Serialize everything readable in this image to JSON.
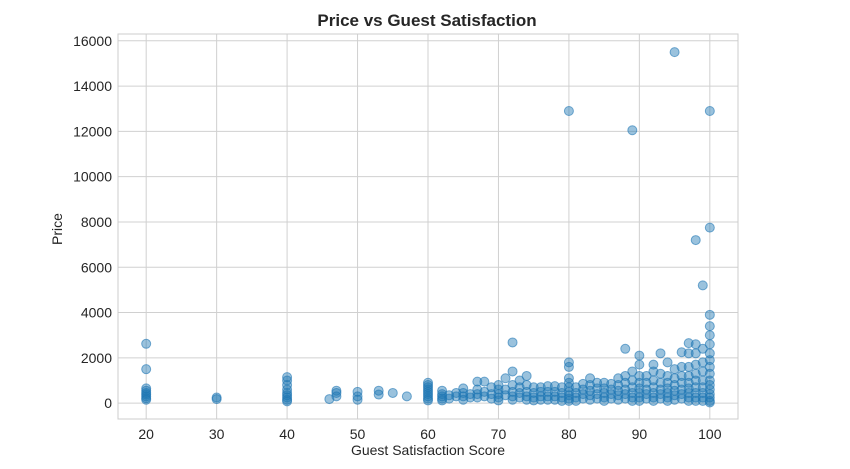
{
  "chart_data": {
    "type": "scatter",
    "title": "Price vs Guest Satisfaction",
    "xlabel": "Guest Satisfaction Score",
    "ylabel": "Price",
    "xlim": [
      16,
      104
    ],
    "ylim": [
      -700,
      16300
    ],
    "xticks": [
      20,
      30,
      40,
      50,
      60,
      70,
      80,
      90,
      100
    ],
    "yticks": [
      0,
      2000,
      4000,
      6000,
      8000,
      10000,
      12000,
      14000,
      16000
    ],
    "grid": true,
    "color": "#1f77b4",
    "alpha": 0.45,
    "points": [
      [
        20,
        2620
      ],
      [
        20,
        1500
      ],
      [
        20,
        650
      ],
      [
        20,
        550
      ],
      [
        20,
        450
      ],
      [
        20,
        380
      ],
      [
        20,
        300
      ],
      [
        20,
        220
      ],
      [
        20,
        150
      ],
      [
        30,
        250
      ],
      [
        30,
        180
      ],
      [
        40,
        1150
      ],
      [
        40,
        1000
      ],
      [
        40,
        800
      ],
      [
        40,
        600
      ],
      [
        40,
        450
      ],
      [
        40,
        350
      ],
      [
        40,
        250
      ],
      [
        40,
        150
      ],
      [
        40,
        80
      ],
      [
        46,
        180
      ],
      [
        47,
        550
      ],
      [
        47,
        450
      ],
      [
        47,
        300
      ],
      [
        50,
        500
      ],
      [
        50,
        300
      ],
      [
        50,
        150
      ],
      [
        53,
        550
      ],
      [
        53,
        380
      ],
      [
        55,
        450
      ],
      [
        57,
        300
      ],
      [
        60,
        900
      ],
      [
        60,
        800
      ],
      [
        60,
        700
      ],
      [
        60,
        600
      ],
      [
        60,
        500
      ],
      [
        60,
        400
      ],
      [
        60,
        300
      ],
      [
        60,
        200
      ],
      [
        60,
        120
      ],
      [
        62,
        550
      ],
      [
        62,
        400
      ],
      [
        62,
        300
      ],
      [
        62,
        200
      ],
      [
        62,
        120
      ],
      [
        63,
        350
      ],
      [
        63,
        200
      ],
      [
        64,
        450
      ],
      [
        64,
        300
      ],
      [
        65,
        650
      ],
      [
        65,
        450
      ],
      [
        65,
        300
      ],
      [
        65,
        150
      ],
      [
        66,
        400
      ],
      [
        66,
        250
      ],
      [
        67,
        950
      ],
      [
        67,
        600
      ],
      [
        67,
        400
      ],
      [
        67,
        250
      ],
      [
        68,
        950
      ],
      [
        68,
        500
      ],
      [
        68,
        300
      ],
      [
        69,
        700
      ],
      [
        69,
        400
      ],
      [
        69,
        200
      ],
      [
        70,
        800
      ],
      [
        70,
        600
      ],
      [
        70,
        400
      ],
      [
        70,
        250
      ],
      [
        70,
        120
      ],
      [
        71,
        1100
      ],
      [
        71,
        600
      ],
      [
        71,
        350
      ],
      [
        72,
        2680
      ],
      [
        72,
        1400
      ],
      [
        72,
        800
      ],
      [
        72,
        500
      ],
      [
        72,
        300
      ],
      [
        72,
        150
      ],
      [
        73,
        1000
      ],
      [
        73,
        700
      ],
      [
        73,
        450
      ],
      [
        73,
        250
      ],
      [
        74,
        1200
      ],
      [
        74,
        800
      ],
      [
        74,
        500
      ],
      [
        74,
        300
      ],
      [
        74,
        150
      ],
      [
        75,
        700
      ],
      [
        75,
        450
      ],
      [
        75,
        250
      ],
      [
        75,
        120
      ],
      [
        76,
        700
      ],
      [
        76,
        500
      ],
      [
        76,
        300
      ],
      [
        76,
        150
      ],
      [
        77,
        750
      ],
      [
        77,
        500
      ],
      [
        77,
        300
      ],
      [
        77,
        150
      ],
      [
        78,
        750
      ],
      [
        78,
        500
      ],
      [
        78,
        300
      ],
      [
        78,
        150
      ],
      [
        79,
        700
      ],
      [
        79,
        450
      ],
      [
        79,
        250
      ],
      [
        79,
        100
      ],
      [
        80,
        12900
      ],
      [
        80,
        1800
      ],
      [
        80,
        1600
      ],
      [
        80,
        1100
      ],
      [
        80,
        900
      ],
      [
        80,
        700
      ],
      [
        80,
        500
      ],
      [
        80,
        350
      ],
      [
        80,
        200
      ],
      [
        80,
        100
      ],
      [
        81,
        700
      ],
      [
        81,
        450
      ],
      [
        81,
        250
      ],
      [
        81,
        100
      ],
      [
        82,
        850
      ],
      [
        82,
        600
      ],
      [
        82,
        400
      ],
      [
        82,
        200
      ],
      [
        83,
        1100
      ],
      [
        83,
        800
      ],
      [
        83,
        550
      ],
      [
        83,
        350
      ],
      [
        83,
        150
      ],
      [
        84,
        900
      ],
      [
        84,
        650
      ],
      [
        84,
        400
      ],
      [
        84,
        200
      ],
      [
        85,
        900
      ],
      [
        85,
        650
      ],
      [
        85,
        450
      ],
      [
        85,
        250
      ],
      [
        85,
        100
      ],
      [
        86,
        850
      ],
      [
        86,
        600
      ],
      [
        86,
        400
      ],
      [
        86,
        200
      ],
      [
        87,
        1100
      ],
      [
        87,
        800
      ],
      [
        87,
        550
      ],
      [
        87,
        350
      ],
      [
        87,
        150
      ],
      [
        88,
        2400
      ],
      [
        88,
        1200
      ],
      [
        88,
        900
      ],
      [
        88,
        600
      ],
      [
        88,
        400
      ],
      [
        88,
        200
      ],
      [
        89,
        12050
      ],
      [
        89,
        1400
      ],
      [
        89,
        1000
      ],
      [
        89,
        700
      ],
      [
        89,
        450
      ],
      [
        89,
        250
      ],
      [
        89,
        100
      ],
      [
        90,
        2100
      ],
      [
        90,
        1700
      ],
      [
        90,
        1200
      ],
      [
        90,
        900
      ],
      [
        90,
        650
      ],
      [
        90,
        450
      ],
      [
        90,
        250
      ],
      [
        90,
        100
      ],
      [
        91,
        1200
      ],
      [
        91,
        900
      ],
      [
        91,
        600
      ],
      [
        91,
        400
      ],
      [
        91,
        200
      ],
      [
        92,
        1700
      ],
      [
        92,
        1400
      ],
      [
        92,
        1000
      ],
      [
        92,
        700
      ],
      [
        92,
        450
      ],
      [
        92,
        250
      ],
      [
        92,
        100
      ],
      [
        93,
        2200
      ],
      [
        93,
        1300
      ],
      [
        93,
        900
      ],
      [
        93,
        600
      ],
      [
        93,
        400
      ],
      [
        93,
        200
      ],
      [
        94,
        1800
      ],
      [
        94,
        1200
      ],
      [
        94,
        900
      ],
      [
        94,
        650
      ],
      [
        94,
        450
      ],
      [
        94,
        250
      ],
      [
        94,
        100
      ],
      [
        95,
        15500
      ],
      [
        95,
        1500
      ],
      [
        95,
        1100
      ],
      [
        95,
        800
      ],
      [
        95,
        550
      ],
      [
        95,
        350
      ],
      [
        95,
        150
      ],
      [
        96,
        2250
      ],
      [
        96,
        1600
      ],
      [
        96,
        1200
      ],
      [
        96,
        900
      ],
      [
        96,
        600
      ],
      [
        96,
        400
      ],
      [
        96,
        200
      ],
      [
        97,
        2650
      ],
      [
        97,
        2200
      ],
      [
        97,
        1600
      ],
      [
        97,
        1200
      ],
      [
        97,
        900
      ],
      [
        97,
        650
      ],
      [
        97,
        450
      ],
      [
        97,
        250
      ],
      [
        97,
        100
      ],
      [
        98,
        7200
      ],
      [
        98,
        2600
      ],
      [
        98,
        2200
      ],
      [
        98,
        1700
      ],
      [
        98,
        1300
      ],
      [
        98,
        1000
      ],
      [
        98,
        700
      ],
      [
        98,
        450
      ],
      [
        98,
        250
      ],
      [
        98,
        100
      ],
      [
        99,
        5200
      ],
      [
        99,
        2400
      ],
      [
        99,
        1800
      ],
      [
        99,
        1400
      ],
      [
        99,
        1000
      ],
      [
        99,
        700
      ],
      [
        99,
        450
      ],
      [
        99,
        250
      ],
      [
        99,
        100
      ],
      [
        100,
        12900
      ],
      [
        100,
        7750
      ],
      [
        100,
        3900
      ],
      [
        100,
        3400
      ],
      [
        100,
        3000
      ],
      [
        100,
        2600
      ],
      [
        100,
        2200
      ],
      [
        100,
        1900
      ],
      [
        100,
        1600
      ],
      [
        100,
        1300
      ],
      [
        100,
        1000
      ],
      [
        100,
        800
      ],
      [
        100,
        600
      ],
      [
        100,
        400
      ],
      [
        100,
        250
      ],
      [
        100,
        100
      ],
      [
        100,
        30
      ]
    ]
  }
}
